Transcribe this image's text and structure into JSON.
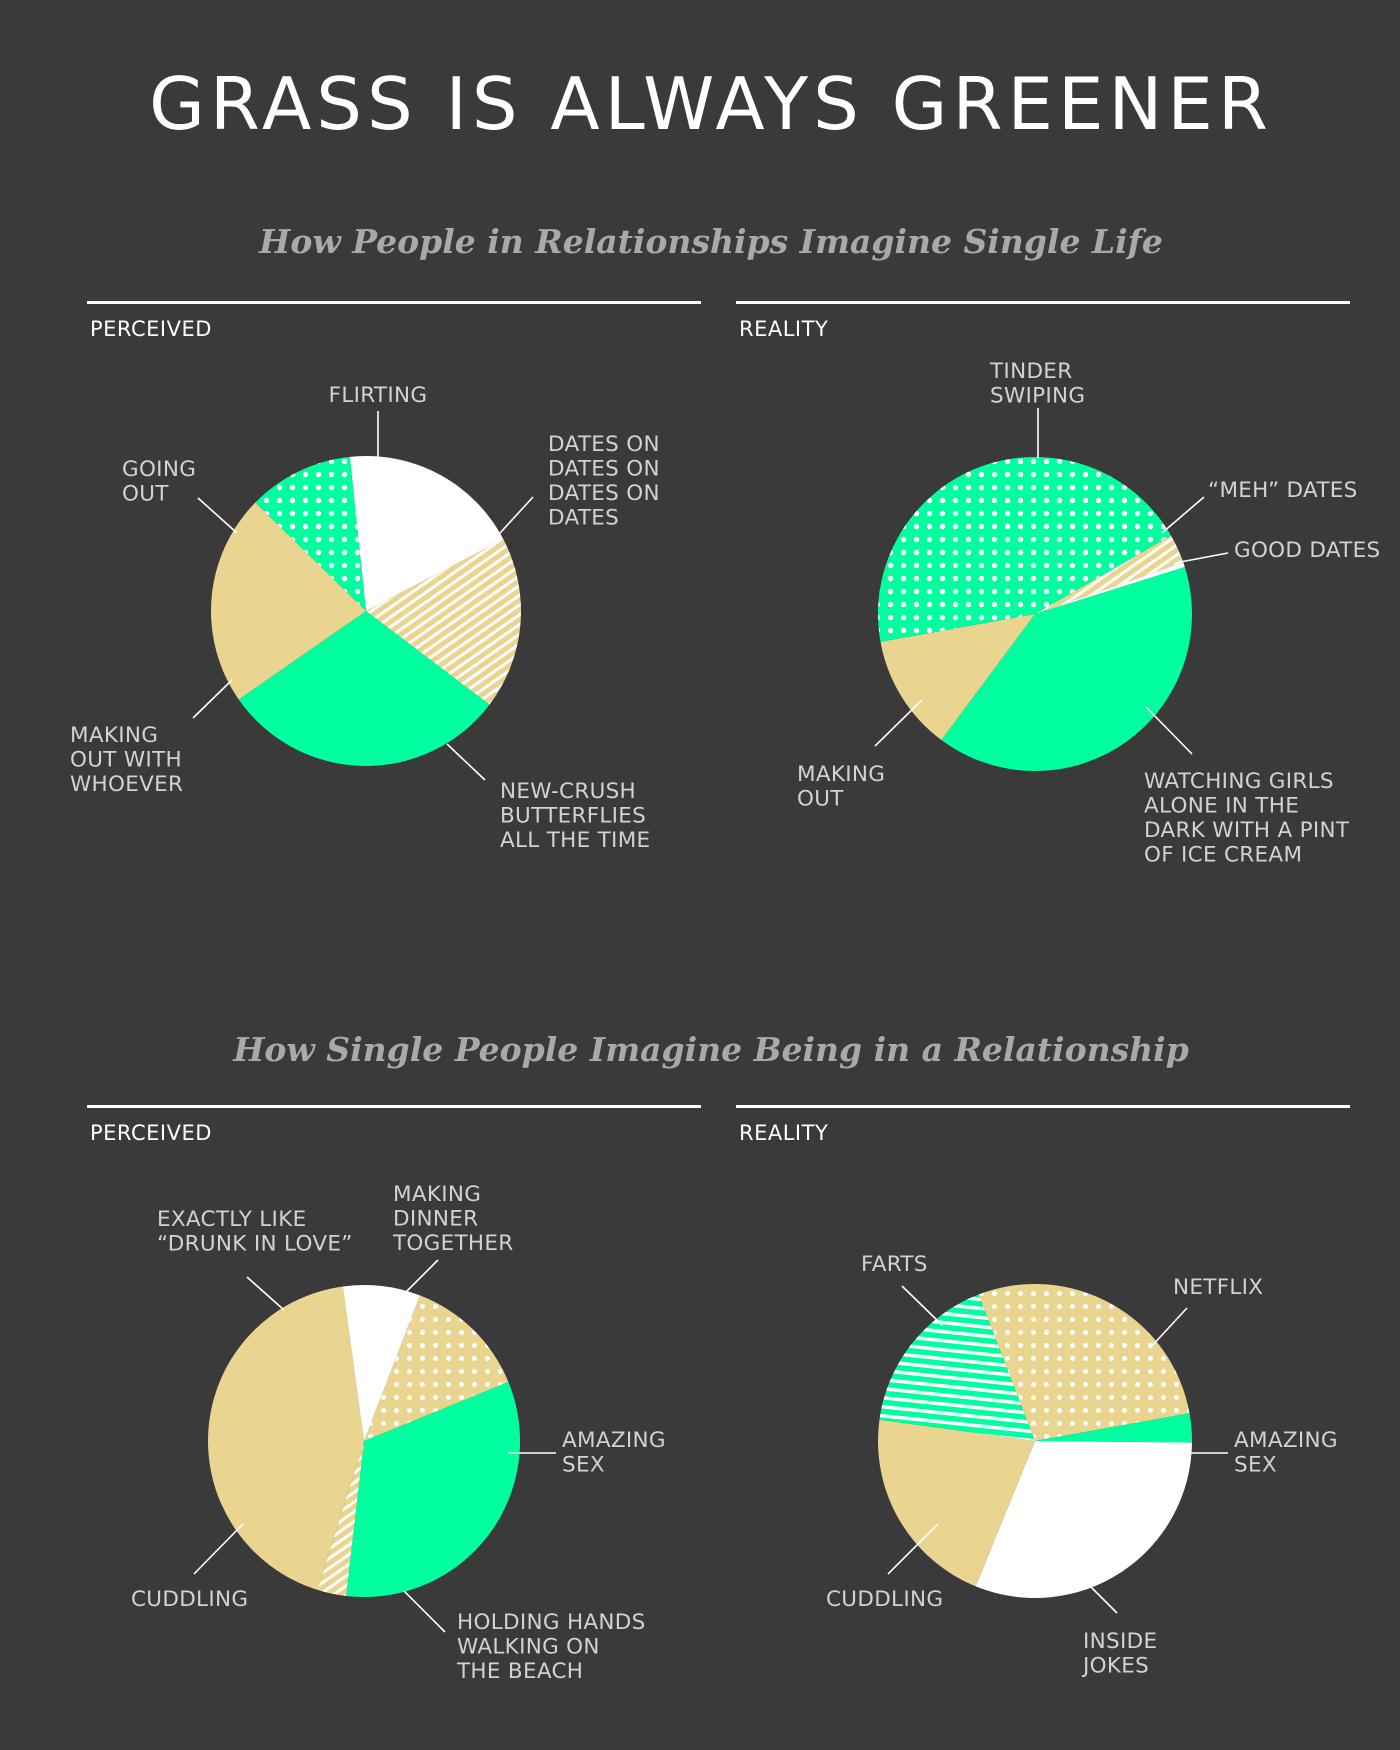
{
  "header": {
    "title": "GRASS IS ALWAYS GREENER"
  },
  "sections": [
    {
      "heading": "How People in Relationships Imagine Single Life"
    },
    {
      "heading": "How Single People Imagine Being in a Relationship"
    }
  ],
  "panels": {
    "perceived_label": "PERCEIVED",
    "reality_label": "REALITY"
  },
  "colors": {
    "background": "#3a3a3a",
    "green": "#00ff9e",
    "tan": "#e9d490",
    "white": "#ffffff",
    "heading_gray": "#a9a9a9",
    "label_gray": "#d2d2d2"
  },
  "chart_data": [
    {
      "type": "pie",
      "title": "How People in Relationships Imagine Single Life — PERCEIVED",
      "slices": [
        {
          "name": "FLIRTING",
          "lines": [
            "FLIRTING"
          ],
          "value": 19,
          "color": "white",
          "pattern": "solid"
        },
        {
          "name": "DATES ON DATES ON DATES ON DATES",
          "lines": [
            "DATES ON",
            "DATES ON",
            "DATES ON",
            "DATES"
          ],
          "value": 18,
          "color": "tan",
          "pattern": "stripes"
        },
        {
          "name": "NEW-CRUSH BUTTERFLIES ALL THE TIME",
          "lines": [
            "NEW-CRUSH",
            "BUTTERFLIES",
            "ALL THE TIME"
          ],
          "value": 30,
          "color": "green",
          "pattern": "solid"
        },
        {
          "name": "MAKING OUT WITH WHOEVER",
          "lines": [
            "MAKING",
            "OUT WITH",
            "WHOEVER"
          ],
          "value": 22,
          "color": "tan",
          "pattern": "solid"
        },
        {
          "name": "GOING OUT",
          "lines": [
            "GOING",
            "OUT"
          ],
          "value": 11,
          "color": "green",
          "pattern": "dots"
        }
      ]
    },
    {
      "type": "pie",
      "title": "How People in Relationships Imagine Single Life — REALITY",
      "slices": [
        {
          "name": "“MEH” DATES",
          "lines": [
            "“MEH” DATES"
          ],
          "value": 3,
          "color": "tan",
          "pattern": "stripes"
        },
        {
          "name": "GOOD DATES",
          "lines": [
            "GOOD DATES"
          ],
          "value": 0.5,
          "color": "white",
          "pattern": "solid"
        },
        {
          "name": "WATCHING GIRLS ALONE IN THE DARK WITH A PINT OF ICE CREAM",
          "lines": [
            "WATCHING GIRLS",
            "ALONE IN THE",
            "DARK WITH A PINT",
            "OF ICE CREAM"
          ],
          "value": 40,
          "color": "green",
          "pattern": "solid"
        },
        {
          "name": "MAKING OUT",
          "lines": [
            "MAKING",
            "OUT"
          ],
          "value": 12,
          "color": "tan",
          "pattern": "solid"
        },
        {
          "name": "TINDER SWIPING",
          "lines": [
            "TINDER",
            "SWIPING"
          ],
          "value": 44.5,
          "color": "green",
          "pattern": "dots"
        }
      ]
    },
    {
      "type": "pie",
      "title": "How Single People Imagine Being in a Relationship — PERCEIVED",
      "slices": [
        {
          "name": "MAKING DINNER TOGETHER",
          "lines": [
            "MAKING",
            "DINNER",
            "TOGETHER"
          ],
          "value": 13,
          "color": "tan",
          "pattern": "dots"
        },
        {
          "name": "AMAZING SEX",
          "lines": [
            "AMAZING",
            "SEX"
          ],
          "value": 33,
          "color": "green",
          "pattern": "solid"
        },
        {
          "name": "HOLDING HANDS WALKING ON THE BEACH",
          "lines": [
            "HOLDING HANDS",
            "WALKING ON",
            "THE BEACH"
          ],
          "value": 3,
          "color": "tan",
          "pattern": "stripes"
        },
        {
          "name": "CUDDLING",
          "lines": [
            "CUDDLING"
          ],
          "value": 43,
          "color": "tan",
          "pattern": "solid"
        },
        {
          "name": "EXACTLY LIKE “DRUNK IN LOVE”",
          "lines": [
            "EXACTLY LIKE",
            "“DRUNK IN LOVE”"
          ],
          "value": 8,
          "color": "white",
          "pattern": "solid"
        }
      ]
    },
    {
      "type": "pie",
      "title": "How Single People Imagine Being in a Relationship — REALITY",
      "slices": [
        {
          "name": "NETFLIX",
          "lines": [
            "NETFLIX"
          ],
          "value": 28,
          "color": "tan",
          "pattern": "dots"
        },
        {
          "name": "AMAZING SEX",
          "lines": [
            "AMAZING",
            "SEX"
          ],
          "value": 3,
          "color": "green",
          "pattern": "solid"
        },
        {
          "name": "INSIDE JOKES",
          "lines": [
            "INSIDE",
            "JOKES"
          ],
          "value": 31,
          "color": "white",
          "pattern": "solid"
        },
        {
          "name": "CUDDLING",
          "lines": [
            "CUDDLING"
          ],
          "value": 21,
          "color": "tan",
          "pattern": "solid"
        },
        {
          "name": "FARTS",
          "lines": [
            "FARTS"
          ],
          "value": 17,
          "color": "green",
          "pattern": "stripes"
        }
      ]
    }
  ]
}
